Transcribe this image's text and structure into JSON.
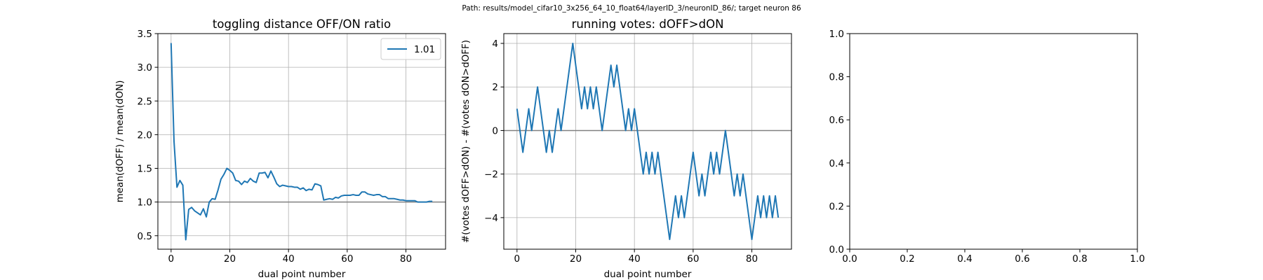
{
  "suptitle": "Path: results/model_cifar10_3x256_64_10_float64/layerID_3/neuronID_86/; target neuron 86",
  "colors": {
    "line": "#1f77b4",
    "ref_line": "#808080",
    "grid": "#b0b0b0"
  },
  "chart_data": [
    {
      "type": "line",
      "title": "toggling distance OFF/ON ratio",
      "xlabel": "dual point number",
      "ylabel": "mean(dOFF) / mean(dON)",
      "xlim": [
        -4.5,
        93.5
      ],
      "ylim": [
        0.3,
        3.5
      ],
      "xticks": [
        0,
        20,
        40,
        60,
        80
      ],
      "yticks": [
        0.5,
        1.0,
        1.5,
        2.0,
        2.5,
        3.0,
        3.5
      ],
      "xtick_labels": [
        "0",
        "20",
        "40",
        "60",
        "80"
      ],
      "ytick_labels": [
        "0.5",
        "1.0",
        "1.5",
        "2.0",
        "2.5",
        "3.0",
        "3.5"
      ],
      "grid": true,
      "legend": {
        "position": "top-right",
        "entries": [
          "1.01"
        ]
      },
      "hline": 1.0,
      "series": [
        {
          "name": "1.01",
          "x": [
            0,
            1,
            2,
            3,
            4,
            5,
            6,
            7,
            8,
            9,
            10,
            11,
            12,
            13,
            14,
            15,
            16,
            17,
            18,
            19,
            20,
            21,
            22,
            23,
            24,
            25,
            26,
            27,
            28,
            29,
            30,
            31,
            32,
            33,
            34,
            35,
            36,
            37,
            38,
            39,
            40,
            41,
            42,
            43,
            44,
            45,
            46,
            47,
            48,
            49,
            50,
            51,
            52,
            53,
            54,
            55,
            56,
            57,
            58,
            59,
            60,
            61,
            62,
            63,
            64,
            65,
            66,
            67,
            68,
            69,
            70,
            71,
            72,
            73,
            74,
            75,
            76,
            77,
            78,
            79,
            80,
            81,
            82,
            83,
            84,
            85,
            86,
            87,
            88,
            89
          ],
          "values": [
            3.36,
            1.9,
            1.22,
            1.32,
            1.25,
            0.44,
            0.89,
            0.92,
            0.87,
            0.84,
            0.81,
            0.9,
            0.78,
            1.0,
            1.05,
            1.04,
            1.18,
            1.34,
            1.41,
            1.5,
            1.47,
            1.43,
            1.32,
            1.31,
            1.26,
            1.31,
            1.29,
            1.35,
            1.31,
            1.29,
            1.43,
            1.43,
            1.44,
            1.36,
            1.46,
            1.37,
            1.27,
            1.23,
            1.25,
            1.24,
            1.23,
            1.23,
            1.22,
            1.22,
            1.19,
            1.21,
            1.17,
            1.19,
            1.18,
            1.27,
            1.26,
            1.24,
            1.03,
            1.04,
            1.05,
            1.04,
            1.07,
            1.06,
            1.09,
            1.1,
            1.1,
            1.1,
            1.11,
            1.1,
            1.1,
            1.15,
            1.15,
            1.12,
            1.11,
            1.1,
            1.11,
            1.11,
            1.08,
            1.08,
            1.05,
            1.05,
            1.05,
            1.04,
            1.03,
            1.03,
            1.02,
            1.02,
            1.02,
            1.02,
            1.0,
            1.0,
            1.0,
            1.0,
            1.01,
            1.01
          ]
        }
      ]
    },
    {
      "type": "line",
      "title": "running votes: dOFF>dON",
      "xlabel": "dual point number",
      "ylabel": "#(votes dOFF>dON) - #(votes dON>dOFF)",
      "xlim": [
        -4.5,
        93.5
      ],
      "ylim": [
        -5.45,
        4.45
      ],
      "xticks": [
        0,
        20,
        40,
        60,
        80
      ],
      "yticks": [
        -4,
        -2,
        0,
        2,
        4
      ],
      "xtick_labels": [
        "0",
        "20",
        "40",
        "60",
        "80"
      ],
      "ytick_labels": [
        "−4",
        "−2",
        "0",
        "2",
        "4"
      ],
      "grid": true,
      "hline": 0,
      "series": [
        {
          "x": [
            0,
            1,
            2,
            3,
            4,
            5,
            6,
            7,
            8,
            9,
            10,
            11,
            12,
            13,
            14,
            15,
            16,
            17,
            18,
            19,
            20,
            21,
            22,
            23,
            24,
            25,
            26,
            27,
            28,
            29,
            30,
            31,
            32,
            33,
            34,
            35,
            36,
            37,
            38,
            39,
            40,
            41,
            42,
            43,
            44,
            45,
            46,
            47,
            48,
            49,
            50,
            51,
            52,
            53,
            54,
            55,
            56,
            57,
            58,
            59,
            60,
            61,
            62,
            63,
            64,
            65,
            66,
            67,
            68,
            69,
            70,
            71,
            72,
            73,
            74,
            75,
            76,
            77,
            78,
            79,
            80,
            81,
            82,
            83,
            84,
            85,
            86,
            87,
            88,
            89
          ],
          "values": [
            1,
            0,
            -1,
            0,
            1,
            0,
            1,
            2,
            1,
            0,
            -1,
            0,
            -1,
            0,
            1,
            0,
            1,
            2,
            3,
            4,
            3,
            2,
            1,
            2,
            1,
            2,
            1,
            2,
            1,
            0,
            1,
            2,
            3,
            2,
            3,
            2,
            1,
            0,
            1,
            0,
            1,
            0,
            -1,
            -2,
            -1,
            -2,
            -1,
            -2,
            -1,
            -2,
            -3,
            -4,
            -5,
            -4,
            -3,
            -4,
            -3,
            -4,
            -3,
            -2,
            -1,
            -2,
            -3,
            -2,
            -3,
            -2,
            -1,
            -2,
            -1,
            -2,
            -1,
            0,
            -1,
            -2,
            -3,
            -2,
            -3,
            -2,
            -3,
            -4,
            -5,
            -4,
            -3,
            -4,
            -3,
            -4,
            -3,
            -4,
            -3,
            -4
          ]
        }
      ]
    },
    {
      "type": "line",
      "title": "",
      "xlabel": "",
      "ylabel": "",
      "xlim": [
        0,
        1
      ],
      "ylim": [
        0,
        1
      ],
      "xticks": [
        0,
        0.2,
        0.4,
        0.6,
        0.8,
        1.0
      ],
      "yticks": [
        0,
        0.2,
        0.4,
        0.6,
        0.8,
        1.0
      ],
      "xtick_labels": [
        "0.0",
        "0.2",
        "0.4",
        "0.6",
        "0.8",
        "1.0"
      ],
      "ytick_labels": [
        "0.0",
        "0.2",
        "0.4",
        "0.6",
        "0.8",
        "1.0"
      ],
      "grid": false,
      "series": []
    }
  ]
}
